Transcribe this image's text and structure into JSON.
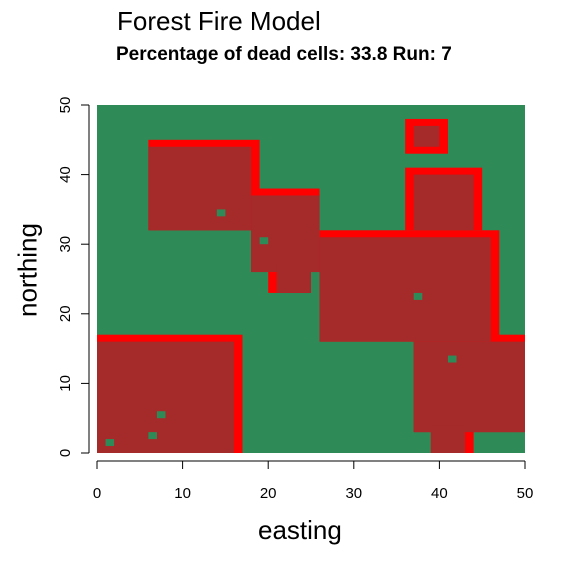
{
  "title": "Forest Fire Model",
  "subtitle": "Percentage of dead cells: 33.8 Run: 7",
  "colors": {
    "forest": "#2e8b57",
    "burnt": "#a52a2a",
    "fire": "#ff0000",
    "axis": "#000000"
  },
  "chart_data": {
    "type": "heatmap",
    "xlabel": "easting",
    "ylabel": "northing",
    "xlim": [
      0,
      50
    ],
    "ylim": [
      0,
      50
    ],
    "x_ticks": [
      0,
      10,
      20,
      30,
      40,
      50
    ],
    "y_ticks": [
      0,
      10,
      20,
      30,
      40,
      50
    ],
    "legend": "none",
    "grid": false,
    "states": [
      "forest",
      "burnt",
      "fire"
    ],
    "burnt_cells": [
      {
        "x": [
          0,
          16
        ],
        "y": [
          0,
          16
        ]
      },
      {
        "x": [
          6,
          18
        ],
        "y": [
          32,
          44
        ]
      },
      {
        "x": [
          18,
          26
        ],
        "y": [
          26,
          37
        ]
      },
      {
        "x": [
          21,
          25
        ],
        "y": [
          23,
          27
        ]
      },
      {
        "x": [
          26,
          46
        ],
        "y": [
          16,
          31
        ]
      },
      {
        "x": [
          37,
          52
        ],
        "y": [
          3,
          16
        ]
      },
      {
        "x": [
          39,
          43
        ],
        "y": [
          0,
          4
        ]
      },
      {
        "x": [
          37,
          44
        ],
        "y": [
          32,
          40
        ]
      },
      {
        "x": [
          37,
          40
        ],
        "y": [
          44,
          47
        ]
      }
    ],
    "fire_fronts": [
      {
        "x": [
          0,
          17
        ],
        "y": [
          0,
          17
        ]
      },
      {
        "x": [
          6,
          19
        ],
        "y": [
          32,
          45
        ]
      },
      {
        "x": [
          18,
          26
        ],
        "y": [
          26,
          38
        ]
      },
      {
        "x": [
          20,
          25
        ],
        "y": [
          23,
          27
        ]
      },
      {
        "x": [
          26,
          47
        ],
        "y": [
          16,
          32
        ]
      },
      {
        "x": [
          37,
          50
        ],
        "y": [
          3,
          17
        ]
      },
      {
        "x": [
          39,
          44
        ],
        "y": [
          0,
          5
        ]
      },
      {
        "x": [
          36,
          45
        ],
        "y": [
          32,
          41
        ]
      },
      {
        "x": [
          36,
          41
        ],
        "y": [
          43,
          48
        ]
      }
    ],
    "live_cells": [
      {
        "x": 1,
        "y": 1
      },
      {
        "x": 6,
        "y": 2
      },
      {
        "x": 7,
        "y": 5
      },
      {
        "x": 14,
        "y": 34
      },
      {
        "x": 19,
        "y": 30
      },
      {
        "x": 37,
        "y": 22
      },
      {
        "x": 41,
        "y": 13
      }
    ]
  }
}
